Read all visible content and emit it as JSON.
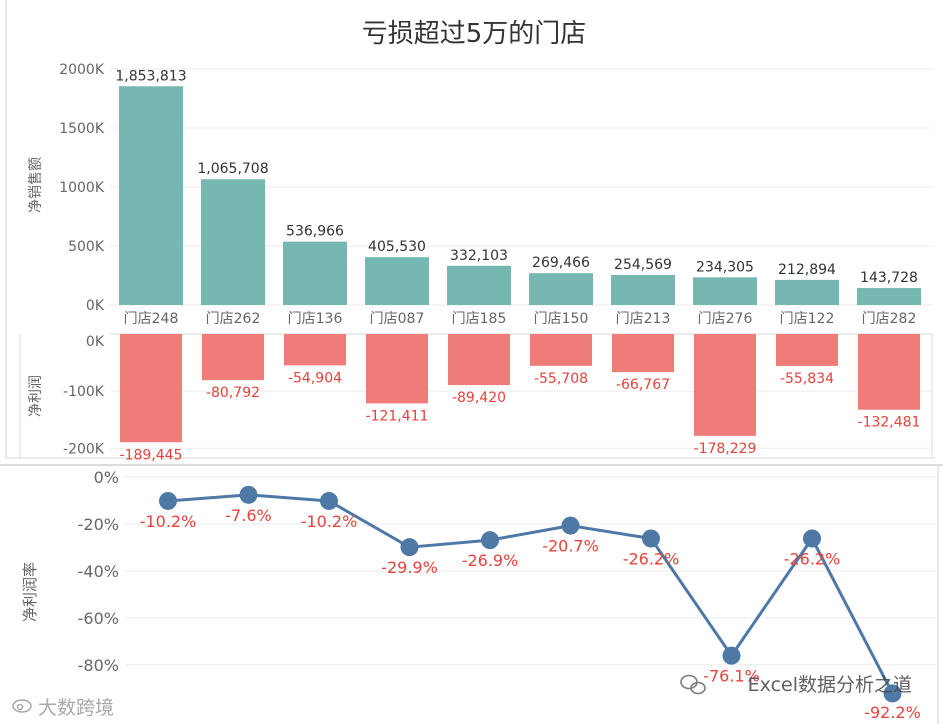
{
  "title": "亏损超过5万的门店",
  "colors": {
    "sales_bar": "#76B7B2",
    "profit_bar": "#F07C7A",
    "line": "#4E79A7",
    "neg_label": "#E8413C",
    "pos_label": "#333333",
    "axis_text": "#666666",
    "grid": "#EBEBEB",
    "frame": "#C8C8C8"
  },
  "chart_data": [
    {
      "type": "bar",
      "title": "亏损超过5万的门店",
      "ylabel": "净销售额",
      "ylim": [
        0,
        2000000
      ],
      "yticks": [
        {
          "value": 0,
          "label": "0K"
        },
        {
          "value": 500000,
          "label": "500K"
        },
        {
          "value": 1000000,
          "label": "1000K"
        },
        {
          "value": 1500000,
          "label": "1500K"
        },
        {
          "value": 2000000,
          "label": "2000K"
        }
      ],
      "categories": [
        "门店248",
        "门店262",
        "门店136",
        "门店087",
        "门店185",
        "门店150",
        "门店213",
        "门店276",
        "门店122",
        "门店282"
      ],
      "values": [
        1853813,
        1065708,
        536966,
        405530,
        332103,
        269466,
        254569,
        234305,
        212894,
        143728
      ],
      "data_labels": [
        "1,853,813",
        "1,065,708",
        "536,966",
        "405,530",
        "332,103",
        "269,466",
        "254,569",
        "234,305",
        "212,894",
        "143,728"
      ]
    },
    {
      "type": "bar",
      "ylabel": "净利润",
      "ylim": [
        -210000,
        0
      ],
      "yticks": [
        {
          "value": 0,
          "label": "0K"
        },
        {
          "value": -100000,
          "label": "-100K"
        },
        {
          "value": -200000,
          "label": "-200K"
        }
      ],
      "categories": [
        "门店248",
        "门店262",
        "门店136",
        "门店087",
        "门店185",
        "门店150",
        "门店213",
        "门店276",
        "门店122",
        "门店282"
      ],
      "values": [
        -189445,
        -80792,
        -54904,
        -121411,
        -89420,
        -55708,
        -66767,
        -178229,
        -55834,
        -132481
      ],
      "data_labels": [
        "-189,445",
        "-80,792",
        "-54,904",
        "-121,411",
        "-89,420",
        "-55,708",
        "-66,767",
        "-178,229",
        "-55,834",
        "-132,481"
      ]
    },
    {
      "type": "line",
      "ylabel": "净利润率",
      "ylim": [
        -95,
        0
      ],
      "yticks": [
        {
          "value": 0,
          "label": "0%"
        },
        {
          "value": -20,
          "label": "-20%"
        },
        {
          "value": -40,
          "label": "-40%"
        },
        {
          "value": -60,
          "label": "-60%"
        },
        {
          "value": -80,
          "label": "-80%"
        }
      ],
      "categories": [
        "门店248",
        "门店262",
        "门店136",
        "门店087",
        "门店185",
        "门店150",
        "门店213",
        "门店276",
        "门店122",
        "门店282"
      ],
      "values": [
        -10.2,
        -7.6,
        -10.2,
        -29.9,
        -26.9,
        -20.7,
        -26.2,
        -76.1,
        -26.2,
        -92.2
      ],
      "data_labels": [
        "-10.2%",
        "-7.6%",
        "-10.2%",
        "-29.9%",
        "-26.9%",
        "-20.7%",
        "-26.2%",
        "-76.1%",
        "-26.2%",
        "-92.2%"
      ]
    }
  ],
  "watermarks": {
    "left": "大数跨境",
    "right": "Excel数据分析之道"
  }
}
